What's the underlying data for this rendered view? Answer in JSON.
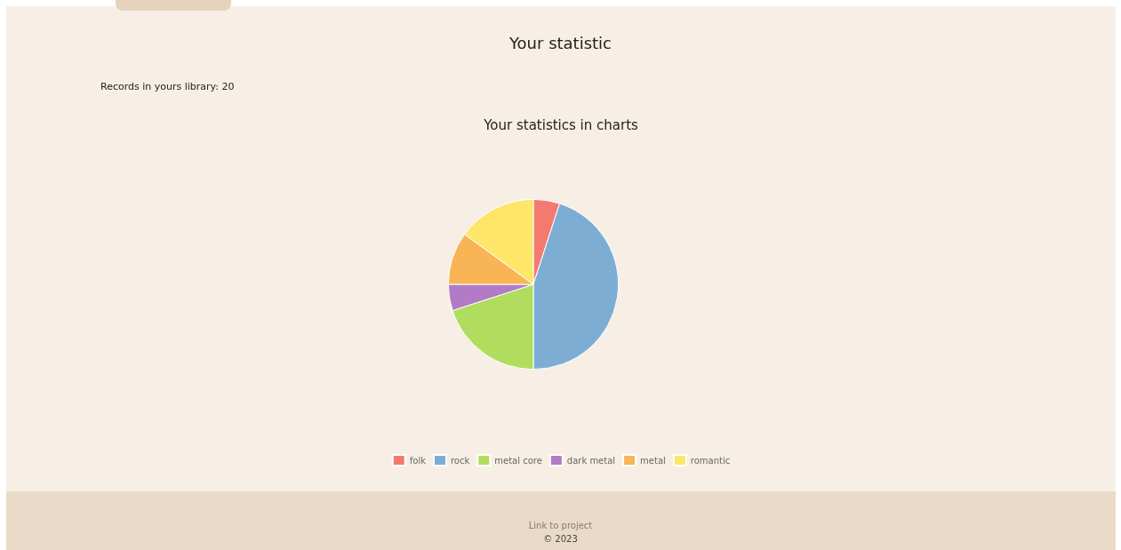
{
  "chart_data": {
    "type": "pie",
    "title": "Your statistics in charts",
    "categories": [
      "folk",
      "rock",
      "metal core",
      "dark metal",
      "metal",
      "romantic"
    ],
    "values": [
      5,
      45,
      20,
      5,
      10,
      15
    ],
    "colors": [
      "#f47a6f",
      "#7eadd4",
      "#b0dd5e",
      "#b27bc6",
      "#f8b455",
      "#fde668"
    ],
    "legend": "bottom",
    "annotations": [
      "Your statistic",
      "Records in yours library: 20",
      "Link to project",
      "© 2023"
    ]
  }
}
